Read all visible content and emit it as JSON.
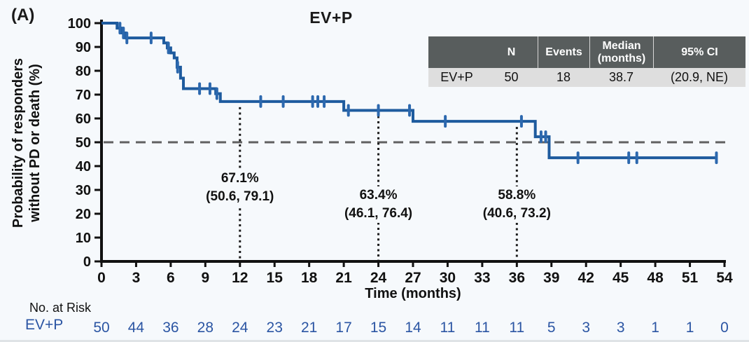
{
  "panel_label": "(A)",
  "title": "EV+P",
  "colors": {
    "curve": "#1e5b9e",
    "censor": "#2c68ae",
    "risk_text": "#2b55a3",
    "reference_line": "#606060",
    "milestone_line": "#1b1b1b",
    "axis": "#111111",
    "table_header_bg": "#585d5d",
    "table_row_bg": "#dedede",
    "background": "#f6f9fc"
  },
  "summary_table": {
    "headers": [
      "",
      "N",
      "Events",
      "Median (months)",
      "95% CI"
    ],
    "rows": [
      [
        "EV+P",
        "50",
        "18",
        "38.7",
        "(20.9, NE)"
      ]
    ]
  },
  "chart_data": {
    "type": "line",
    "subtype": "kaplan-meier-step",
    "title": "EV+P",
    "xlabel": "Time (months)",
    "ylabel_lines": [
      "Probability of responders",
      "without PD or death (%)"
    ],
    "x_axis": {
      "min": 0,
      "max": 54,
      "tick_step": 3
    },
    "y_axis": {
      "min": 0,
      "max": 100,
      "tick_step": 10
    },
    "reference_line_y": 50,
    "series": [
      {
        "name": "EV+P",
        "steps": [
          [
            0,
            100
          ],
          [
            1.35,
            97.9
          ],
          [
            1.7,
            95.9
          ],
          [
            2.1,
            93.8
          ],
          [
            5.4,
            91.7
          ],
          [
            5.7,
            89.6
          ],
          [
            6.0,
            87.5
          ],
          [
            6.3,
            85.4
          ],
          [
            6.55,
            81.5
          ],
          [
            6.85,
            76.9
          ],
          [
            7.1,
            72.5
          ],
          [
            9.9,
            70.4
          ],
          [
            10.3,
            67.1
          ],
          [
            21.0,
            63.4
          ],
          [
            27.0,
            58.8
          ],
          [
            37.6,
            52.3
          ],
          [
            38.8,
            43.5
          ]
        ],
        "end_month": 53.3,
        "censors": [
          [
            1.6,
            97.9
          ],
          [
            1.9,
            95.9
          ],
          [
            2.2,
            93.8
          ],
          [
            4.3,
            93.8
          ],
          [
            5.8,
            89.6
          ],
          [
            6.6,
            81.5
          ],
          [
            8.5,
            72.5
          ],
          [
            9.4,
            72.5
          ],
          [
            10.0,
            70.4
          ],
          [
            13.8,
            67.1
          ],
          [
            15.75,
            67.1
          ],
          [
            18.3,
            67.1
          ],
          [
            18.75,
            67.1
          ],
          [
            19.3,
            67.1
          ],
          [
            21.4,
            63.4
          ],
          [
            24.0,
            63.4
          ],
          [
            26.7,
            63.4
          ],
          [
            29.8,
            58.8
          ],
          [
            36.4,
            58.8
          ],
          [
            38.1,
            52.3
          ],
          [
            38.5,
            52.3
          ],
          [
            41.3,
            43.5
          ],
          [
            45.7,
            43.5
          ],
          [
            46.4,
            43.5
          ],
          [
            53.3,
            43.5
          ]
        ]
      }
    ],
    "annotations": [
      {
        "x_month": 12,
        "value": "67.1%",
        "ci": "(50.6, 79.1)"
      },
      {
        "x_month": 24,
        "value": "63.4%",
        "ci": "(46.1, 76.4)"
      },
      {
        "x_month": 36,
        "value": "58.8%",
        "ci": "(40.6, 73.2)"
      }
    ]
  },
  "risk_table": {
    "label": "No. at Risk",
    "rows": [
      {
        "name": "EV+P",
        "months": [
          0,
          3,
          6,
          9,
          12,
          15,
          18,
          21,
          24,
          27,
          30,
          33,
          36,
          39,
          42,
          45,
          48,
          51,
          54
        ],
        "values": [
          50,
          44,
          36,
          28,
          24,
          23,
          21,
          17,
          15,
          14,
          11,
          11,
          11,
          5,
          3,
          3,
          1,
          1,
          0
        ]
      }
    ]
  }
}
